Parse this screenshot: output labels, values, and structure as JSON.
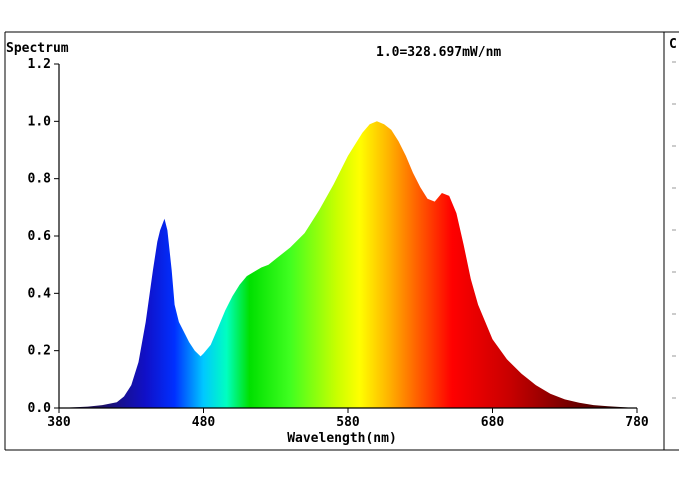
{
  "chart_data": {
    "type": "area",
    "title": "Spectrum",
    "scale_note": "1.0=328.697mW/nm",
    "xlabel": "Wavelength(nm)",
    "ylabel": "",
    "xlim": [
      380,
      780
    ],
    "ylim": [
      0,
      1.2
    ],
    "x_ticks": [
      380,
      480,
      580,
      680,
      780
    ],
    "y_ticks": [
      0.0,
      0.2,
      0.4,
      0.6,
      0.8,
      1.0,
      1.2
    ],
    "x_tick_labels": [
      "380",
      "480",
      "580",
      "680",
      "780"
    ],
    "y_tick_labels": [
      "0.0",
      "0.2",
      "0.4",
      "0.6",
      "0.8",
      "1.0",
      "1.2"
    ],
    "fill": "visible-spectrum gradient",
    "grid": false,
    "series": [
      {
        "x": [
          380,
          400,
          410,
          420,
          425,
          430,
          435,
          440,
          445,
          448,
          450,
          453,
          455,
          458,
          460,
          463,
          466,
          470,
          474,
          478,
          480,
          485,
          490,
          495,
          500,
          505,
          510,
          515,
          520,
          525,
          530,
          540,
          550,
          560,
          570,
          580,
          590,
          595,
          600,
          605,
          610,
          615,
          620,
          625,
          630,
          635,
          640,
          645,
          650,
          655,
          660,
          665,
          670,
          675,
          680,
          690,
          700,
          710,
          720,
          730,
          740,
          750,
          760,
          770,
          780
        ],
        "y": [
          0.0,
          0.005,
          0.01,
          0.02,
          0.04,
          0.08,
          0.16,
          0.3,
          0.48,
          0.58,
          0.62,
          0.66,
          0.62,
          0.48,
          0.36,
          0.3,
          0.27,
          0.23,
          0.2,
          0.18,
          0.19,
          0.22,
          0.28,
          0.34,
          0.39,
          0.43,
          0.46,
          0.475,
          0.49,
          0.5,
          0.52,
          0.56,
          0.61,
          0.69,
          0.78,
          0.88,
          0.96,
          0.99,
          1.0,
          0.99,
          0.97,
          0.93,
          0.88,
          0.82,
          0.77,
          0.73,
          0.72,
          0.75,
          0.74,
          0.68,
          0.57,
          0.45,
          0.36,
          0.3,
          0.24,
          0.17,
          0.12,
          0.08,
          0.05,
          0.03,
          0.018,
          0.01,
          0.006,
          0.003,
          0.0
        ]
      }
    ]
  },
  "side_panel": {
    "label": "C"
  }
}
